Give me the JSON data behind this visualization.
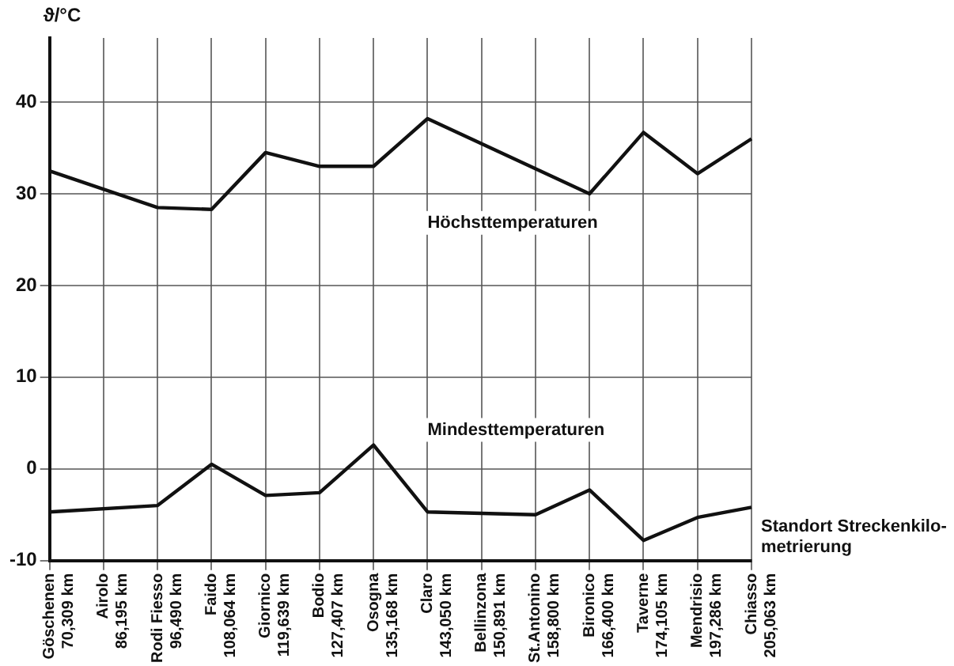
{
  "chart_data": {
    "type": "line",
    "ylabel": "ϑ/°C",
    "xlabel": "Standort Streckenkilo-\nmetrierung",
    "categories": [
      "Göschenen\n70,309 km",
      "Airolo\n86,195 km",
      "Rodi Fiesso\n96,490 km",
      "Faido\n108,064 km",
      "Giornico\n119,639 km",
      "Bodio\n127,407 km",
      "Osogna\n135,168 km",
      "Claro\n143,050 km",
      "Bellinzona\n150,891 km",
      "St.Antonino\n158,800 km",
      "Bironico\n166,400 km",
      "Taverne\n174,105 km",
      "Mendrisio\n197,286 km",
      "Chiasso\n205,063 km"
    ],
    "ylim": [
      -10,
      47
    ],
    "yticks": [
      -10,
      0,
      10,
      20,
      30,
      40
    ],
    "grid": true,
    "series": [
      {
        "name": "Höchsttemperaturen",
        "color": "#111111",
        "values": [
          32.5,
          null,
          28.5,
          28.3,
          34.5,
          33,
          33,
          38.2,
          null,
          null,
          30,
          36.7,
          32.2,
          36
        ]
      },
      {
        "name": "Mindesttemperaturen",
        "color": "#111111",
        "values": [
          -4.7,
          null,
          -4,
          0.5,
          -2.9,
          -2.6,
          2.6,
          -4.7,
          null,
          -5,
          -2.3,
          -7.8,
          -5.3,
          -4.2
        ]
      }
    ]
  }
}
